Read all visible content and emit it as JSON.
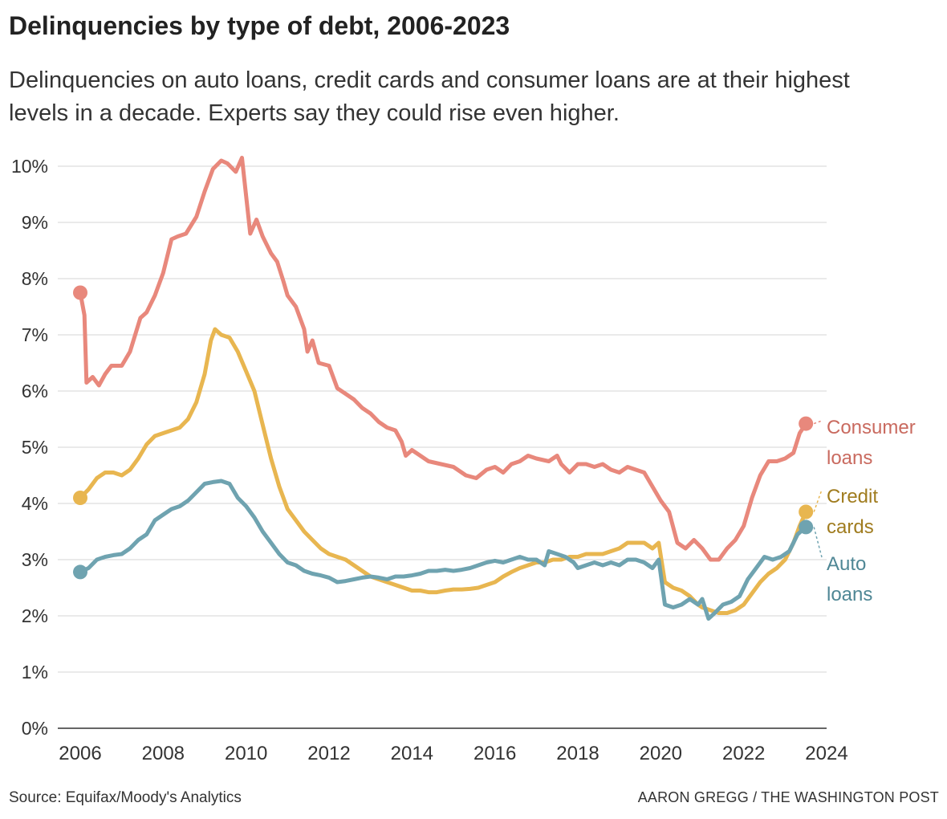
{
  "title": "Delinquencies by type of debt, 2006-2023",
  "subtitle": "Delinquencies on auto loans, credit cards and consumer loans are at their highest levels in a decade. Experts say they could rise even higher.",
  "source": "Source: Equifax/Moody's Analytics",
  "credit": "AARON GREGG / THE WASHINGTON POST",
  "chart_data": {
    "type": "line",
    "xlim": [
      2006,
      2024
    ],
    "ylim": [
      0,
      10
    ],
    "x_ticks": [
      "2006",
      "2008",
      "2010",
      "2012",
      "2014",
      "2016",
      "2018",
      "2020",
      "2022",
      "2024"
    ],
    "y_ticks": [
      "0%",
      "1%",
      "2%",
      "3%",
      "4%",
      "5%",
      "6%",
      "7%",
      "8%",
      "9%",
      "10%"
    ],
    "grid": true,
    "legend": "direct labels at right end of lines",
    "series": [
      {
        "name": "Consumer loans",
        "label_lines": [
          "Consumer",
          "loans"
        ],
        "color": "#e8887c",
        "label_color": "#c96a5f",
        "points": [
          [
            2006.0,
            7.75
          ],
          [
            2006.1,
            7.35
          ],
          [
            2006.15,
            6.15
          ],
          [
            2006.3,
            6.25
          ],
          [
            2006.45,
            6.1
          ],
          [
            2006.6,
            6.3
          ],
          [
            2006.75,
            6.45
          ],
          [
            2007.0,
            6.45
          ],
          [
            2007.2,
            6.7
          ],
          [
            2007.45,
            7.3
          ],
          [
            2007.6,
            7.4
          ],
          [
            2007.8,
            7.7
          ],
          [
            2008.0,
            8.1
          ],
          [
            2008.2,
            8.7
          ],
          [
            2008.35,
            8.75
          ],
          [
            2008.55,
            8.8
          ],
          [
            2008.8,
            9.1
          ],
          [
            2009.0,
            9.55
          ],
          [
            2009.2,
            9.95
          ],
          [
            2009.4,
            10.1
          ],
          [
            2009.55,
            10.05
          ],
          [
            2009.75,
            9.9
          ],
          [
            2009.9,
            10.15
          ],
          [
            2010.1,
            8.8
          ],
          [
            2010.25,
            9.05
          ],
          [
            2010.4,
            8.75
          ],
          [
            2010.6,
            8.45
          ],
          [
            2010.75,
            8.3
          ],
          [
            2010.9,
            7.95
          ],
          [
            2011.0,
            7.7
          ],
          [
            2011.2,
            7.5
          ],
          [
            2011.4,
            7.1
          ],
          [
            2011.48,
            6.7
          ],
          [
            2011.6,
            6.9
          ],
          [
            2011.75,
            6.5
          ],
          [
            2012.0,
            6.45
          ],
          [
            2012.2,
            6.05
          ],
          [
            2012.4,
            5.95
          ],
          [
            2012.6,
            5.85
          ],
          [
            2012.8,
            5.7
          ],
          [
            2013.0,
            5.6
          ],
          [
            2013.2,
            5.45
          ],
          [
            2013.4,
            5.35
          ],
          [
            2013.6,
            5.3
          ],
          [
            2013.75,
            5.1
          ],
          [
            2013.85,
            4.85
          ],
          [
            2014.0,
            4.95
          ],
          [
            2014.2,
            4.85
          ],
          [
            2014.4,
            4.75
          ],
          [
            2014.7,
            4.7
          ],
          [
            2015.0,
            4.65
          ],
          [
            2015.3,
            4.5
          ],
          [
            2015.55,
            4.45
          ],
          [
            2015.8,
            4.6
          ],
          [
            2016.0,
            4.65
          ],
          [
            2016.2,
            4.55
          ],
          [
            2016.4,
            4.7
          ],
          [
            2016.6,
            4.75
          ],
          [
            2016.8,
            4.85
          ],
          [
            2017.0,
            4.8
          ],
          [
            2017.3,
            4.75
          ],
          [
            2017.5,
            4.85
          ],
          [
            2017.6,
            4.7
          ],
          [
            2017.8,
            4.55
          ],
          [
            2018.0,
            4.7
          ],
          [
            2018.2,
            4.7
          ],
          [
            2018.4,
            4.65
          ],
          [
            2018.6,
            4.7
          ],
          [
            2018.8,
            4.6
          ],
          [
            2019.0,
            4.55
          ],
          [
            2019.2,
            4.65
          ],
          [
            2019.4,
            4.6
          ],
          [
            2019.6,
            4.55
          ],
          [
            2019.8,
            4.3
          ],
          [
            2020.0,
            4.05
          ],
          [
            2020.2,
            3.85
          ],
          [
            2020.4,
            3.3
          ],
          [
            2020.6,
            3.2
          ],
          [
            2020.8,
            3.35
          ],
          [
            2021.0,
            3.2
          ],
          [
            2021.2,
            3.0
          ],
          [
            2021.4,
            3.0
          ],
          [
            2021.6,
            3.2
          ],
          [
            2021.8,
            3.35
          ],
          [
            2022.0,
            3.6
          ],
          [
            2022.2,
            4.1
          ],
          [
            2022.4,
            4.5
          ],
          [
            2022.6,
            4.75
          ],
          [
            2022.8,
            4.75
          ],
          [
            2023.0,
            4.8
          ],
          [
            2023.2,
            4.9
          ],
          [
            2023.35,
            5.25
          ],
          [
            2023.5,
            5.42
          ]
        ]
      },
      {
        "name": "Credit cards",
        "label_lines": [
          "Credit",
          "cards"
        ],
        "color": "#e8b650",
        "label_color": "#a07c1f",
        "points": [
          [
            2006.0,
            4.1
          ],
          [
            2006.2,
            4.25
          ],
          [
            2006.4,
            4.45
          ],
          [
            2006.6,
            4.55
          ],
          [
            2006.8,
            4.55
          ],
          [
            2007.0,
            4.5
          ],
          [
            2007.2,
            4.6
          ],
          [
            2007.4,
            4.8
          ],
          [
            2007.6,
            5.05
          ],
          [
            2007.8,
            5.2
          ],
          [
            2008.0,
            5.25
          ],
          [
            2008.2,
            5.3
          ],
          [
            2008.4,
            5.35
          ],
          [
            2008.6,
            5.5
          ],
          [
            2008.8,
            5.8
          ],
          [
            2009.0,
            6.3
          ],
          [
            2009.15,
            6.9
          ],
          [
            2009.25,
            7.1
          ],
          [
            2009.4,
            7.0
          ],
          [
            2009.6,
            6.95
          ],
          [
            2009.8,
            6.7
          ],
          [
            2010.0,
            6.35
          ],
          [
            2010.2,
            6.0
          ],
          [
            2010.4,
            5.4
          ],
          [
            2010.6,
            4.8
          ],
          [
            2010.8,
            4.3
          ],
          [
            2011.0,
            3.9
          ],
          [
            2011.2,
            3.7
          ],
          [
            2011.4,
            3.5
          ],
          [
            2011.6,
            3.35
          ],
          [
            2011.8,
            3.2
          ],
          [
            2012.0,
            3.1
          ],
          [
            2012.2,
            3.05
          ],
          [
            2012.4,
            3.0
          ],
          [
            2012.6,
            2.9
          ],
          [
            2012.8,
            2.8
          ],
          [
            2013.0,
            2.7
          ],
          [
            2013.2,
            2.65
          ],
          [
            2013.4,
            2.6
          ],
          [
            2013.6,
            2.55
          ],
          [
            2013.8,
            2.5
          ],
          [
            2014.0,
            2.45
          ],
          [
            2014.2,
            2.45
          ],
          [
            2014.4,
            2.42
          ],
          [
            2014.6,
            2.42
          ],
          [
            2014.8,
            2.45
          ],
          [
            2015.0,
            2.47
          ],
          [
            2015.2,
            2.47
          ],
          [
            2015.4,
            2.48
          ],
          [
            2015.6,
            2.5
          ],
          [
            2015.8,
            2.55
          ],
          [
            2016.0,
            2.6
          ],
          [
            2016.2,
            2.7
          ],
          [
            2016.4,
            2.78
          ],
          [
            2016.6,
            2.85
          ],
          [
            2016.8,
            2.9
          ],
          [
            2017.0,
            2.95
          ],
          [
            2017.2,
            2.95
          ],
          [
            2017.4,
            3.0
          ],
          [
            2017.6,
            3.0
          ],
          [
            2017.8,
            3.05
          ],
          [
            2018.0,
            3.05
          ],
          [
            2018.2,
            3.1
          ],
          [
            2018.4,
            3.1
          ],
          [
            2018.6,
            3.1
          ],
          [
            2018.8,
            3.15
          ],
          [
            2019.0,
            3.2
          ],
          [
            2019.2,
            3.3
          ],
          [
            2019.4,
            3.3
          ],
          [
            2019.6,
            3.3
          ],
          [
            2019.8,
            3.2
          ],
          [
            2019.95,
            3.3
          ],
          [
            2020.1,
            2.6
          ],
          [
            2020.3,
            2.5
          ],
          [
            2020.5,
            2.45
          ],
          [
            2020.7,
            2.35
          ],
          [
            2020.9,
            2.2
          ],
          [
            2021.0,
            2.15
          ],
          [
            2021.2,
            2.1
          ],
          [
            2021.4,
            2.05
          ],
          [
            2021.6,
            2.05
          ],
          [
            2021.8,
            2.1
          ],
          [
            2022.0,
            2.2
          ],
          [
            2022.2,
            2.4
          ],
          [
            2022.4,
            2.6
          ],
          [
            2022.6,
            2.75
          ],
          [
            2022.8,
            2.85
          ],
          [
            2023.0,
            3.0
          ],
          [
            2023.2,
            3.3
          ],
          [
            2023.35,
            3.6
          ],
          [
            2023.5,
            3.85
          ]
        ]
      },
      {
        "name": "Auto loans",
        "label_lines": [
          "Auto",
          "loans"
        ],
        "color": "#6fa3b0",
        "label_color": "#4f8795",
        "points": [
          [
            2006.0,
            2.78
          ],
          [
            2006.2,
            2.85
          ],
          [
            2006.4,
            3.0
          ],
          [
            2006.6,
            3.05
          ],
          [
            2006.8,
            3.08
          ],
          [
            2007.0,
            3.1
          ],
          [
            2007.2,
            3.2
          ],
          [
            2007.4,
            3.35
          ],
          [
            2007.6,
            3.45
          ],
          [
            2007.8,
            3.7
          ],
          [
            2008.0,
            3.8
          ],
          [
            2008.2,
            3.9
          ],
          [
            2008.4,
            3.95
          ],
          [
            2008.6,
            4.05
          ],
          [
            2008.8,
            4.2
          ],
          [
            2009.0,
            4.35
          ],
          [
            2009.2,
            4.38
          ],
          [
            2009.4,
            4.4
          ],
          [
            2009.6,
            4.35
          ],
          [
            2009.8,
            4.1
          ],
          [
            2010.0,
            3.95
          ],
          [
            2010.2,
            3.75
          ],
          [
            2010.4,
            3.5
          ],
          [
            2010.6,
            3.3
          ],
          [
            2010.8,
            3.1
          ],
          [
            2011.0,
            2.95
          ],
          [
            2011.2,
            2.9
          ],
          [
            2011.4,
            2.8
          ],
          [
            2011.6,
            2.75
          ],
          [
            2011.8,
            2.72
          ],
          [
            2012.0,
            2.68
          ],
          [
            2012.2,
            2.6
          ],
          [
            2012.4,
            2.62
          ],
          [
            2012.6,
            2.65
          ],
          [
            2012.8,
            2.68
          ],
          [
            2013.0,
            2.7
          ],
          [
            2013.2,
            2.68
          ],
          [
            2013.4,
            2.65
          ],
          [
            2013.6,
            2.7
          ],
          [
            2013.8,
            2.7
          ],
          [
            2014.0,
            2.72
          ],
          [
            2014.2,
            2.75
          ],
          [
            2014.4,
            2.8
          ],
          [
            2014.6,
            2.8
          ],
          [
            2014.8,
            2.82
          ],
          [
            2015.0,
            2.8
          ],
          [
            2015.2,
            2.82
          ],
          [
            2015.4,
            2.85
          ],
          [
            2015.6,
            2.9
          ],
          [
            2015.8,
            2.95
          ],
          [
            2016.0,
            2.98
          ],
          [
            2016.2,
            2.95
          ],
          [
            2016.4,
            3.0
          ],
          [
            2016.6,
            3.05
          ],
          [
            2016.8,
            3.0
          ],
          [
            2017.0,
            3.0
          ],
          [
            2017.2,
            2.9
          ],
          [
            2017.3,
            3.15
          ],
          [
            2017.5,
            3.1
          ],
          [
            2017.7,
            3.05
          ],
          [
            2017.9,
            2.95
          ],
          [
            2018.0,
            2.85
          ],
          [
            2018.2,
            2.9
          ],
          [
            2018.4,
            2.95
          ],
          [
            2018.6,
            2.9
          ],
          [
            2018.8,
            2.95
          ],
          [
            2019.0,
            2.9
          ],
          [
            2019.2,
            3.0
          ],
          [
            2019.4,
            3.0
          ],
          [
            2019.6,
            2.95
          ],
          [
            2019.8,
            2.85
          ],
          [
            2019.95,
            3.0
          ],
          [
            2020.1,
            2.2
          ],
          [
            2020.3,
            2.15
          ],
          [
            2020.5,
            2.2
          ],
          [
            2020.7,
            2.3
          ],
          [
            2020.9,
            2.2
          ],
          [
            2021.0,
            2.3
          ],
          [
            2021.15,
            1.95
          ],
          [
            2021.3,
            2.05
          ],
          [
            2021.5,
            2.2
          ],
          [
            2021.7,
            2.25
          ],
          [
            2021.9,
            2.35
          ],
          [
            2022.1,
            2.65
          ],
          [
            2022.3,
            2.85
          ],
          [
            2022.5,
            3.05
          ],
          [
            2022.7,
            3.0
          ],
          [
            2022.9,
            3.05
          ],
          [
            2023.1,
            3.15
          ],
          [
            2023.3,
            3.45
          ],
          [
            2023.5,
            3.58
          ]
        ]
      }
    ]
  }
}
